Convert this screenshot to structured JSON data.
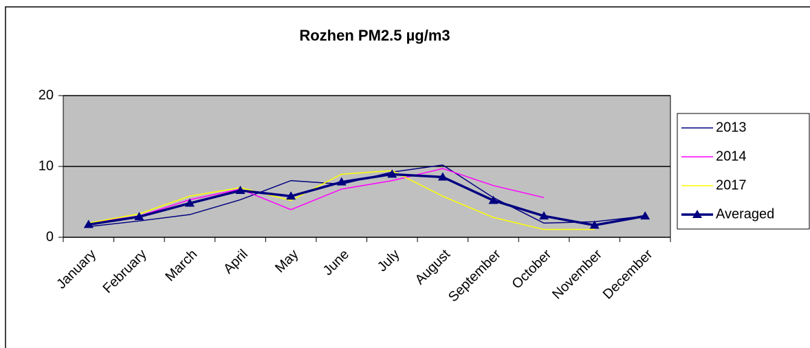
{
  "chart_data": {
    "type": "line",
    "title": "Rozhen PM2.5 µg/m3",
    "categories": [
      "January",
      "February",
      "March",
      "April",
      "May",
      "June",
      "July",
      "August",
      "September",
      "October",
      "November",
      "December"
    ],
    "series": [
      {
        "name": "2013",
        "color": "#000080",
        "values": [
          1.5,
          2.3,
          3.2,
          5.3,
          8.0,
          7.5,
          9.2,
          10.2,
          5.6,
          2.0,
          2.2,
          3.0
        ]
      },
      {
        "name": "2014",
        "color": "#ff00ff",
        "values": [
          2.0,
          3.0,
          5.3,
          6.8,
          3.9,
          6.8,
          8.0,
          9.7,
          7.3,
          5.6,
          null,
          null
        ]
      },
      {
        "name": "2017",
        "color": "#ffff00",
        "values": [
          2.0,
          3.3,
          5.8,
          7.0,
          5.2,
          8.9,
          9.4,
          5.8,
          2.8,
          1.1,
          1.1,
          null
        ]
      },
      {
        "name": "Averaged",
        "color": "#000080",
        "values": [
          1.8,
          2.9,
          4.8,
          6.6,
          5.8,
          7.8,
          8.9,
          8.5,
          5.2,
          3.0,
          1.7,
          3.0
        ]
      }
    ],
    "ylim": [
      0,
      20
    ],
    "yticks": [
      0,
      10,
      20
    ],
    "grid": true,
    "legend": "right"
  }
}
